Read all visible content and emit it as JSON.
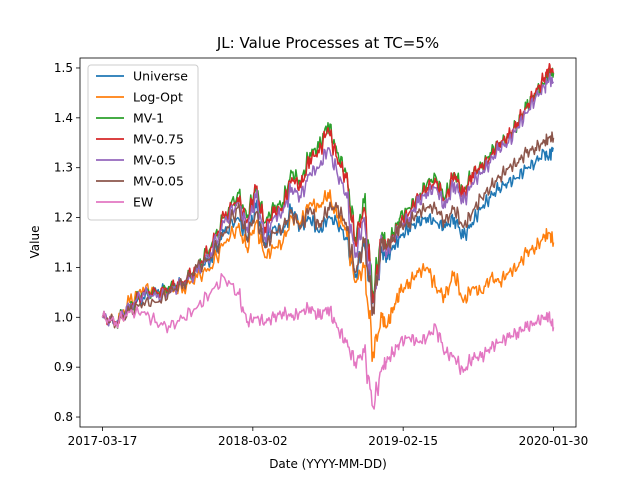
{
  "chart_data": {
    "type": "line",
    "title": "JL: Value Processes at TC=5%",
    "xlabel": "Date (YYYY-MM-DD)",
    "ylabel": "Value",
    "ylim": [
      0.78,
      1.52
    ],
    "yticks": [
      0.8,
      0.9,
      1.0,
      1.1,
      1.2,
      1.3,
      1.4,
      1.5
    ],
    "ytick_labels": [
      "0.8",
      "0.9",
      "1.0",
      "1.1",
      "1.2",
      "1.3",
      "1.4",
      "1.5"
    ],
    "xlim": [
      -0.05,
      1.05
    ],
    "xticks": [
      0.0,
      0.3333,
      0.6667,
      1.0
    ],
    "xtick_labels": [
      "2017-03-17",
      "2018-03-02",
      "2019-02-15",
      "2020-01-30"
    ],
    "x": [
      0.0,
      0.03,
      0.06,
      0.09,
      0.12,
      0.15,
      0.18,
      0.21,
      0.24,
      0.27,
      0.3,
      0.32,
      0.34,
      0.36,
      0.38,
      0.4,
      0.42,
      0.44,
      0.46,
      0.48,
      0.5,
      0.52,
      0.54,
      0.56,
      0.58,
      0.6,
      0.62,
      0.63,
      0.645,
      0.66,
      0.68,
      0.7,
      0.72,
      0.74,
      0.76,
      0.78,
      0.8,
      0.82,
      0.84,
      0.86,
      0.88,
      0.9,
      0.92,
      0.94,
      0.96,
      0.98,
      0.99,
      1.0
    ],
    "legend_position": "upper-left",
    "series": [
      {
        "name": "Universe",
        "color": "#1f77b4",
        "values": [
          1.0,
          0.99,
          1.02,
          1.04,
          1.05,
          1.06,
          1.07,
          1.09,
          1.12,
          1.17,
          1.2,
          1.16,
          1.22,
          1.15,
          1.18,
          1.17,
          1.22,
          1.18,
          1.2,
          1.17,
          1.2,
          1.19,
          1.16,
          1.08,
          1.15,
          1.03,
          1.13,
          1.12,
          1.14,
          1.16,
          1.18,
          1.19,
          1.2,
          1.19,
          1.18,
          1.2,
          1.16,
          1.19,
          1.22,
          1.24,
          1.26,
          1.27,
          1.28,
          1.3,
          1.31,
          1.33,
          1.32,
          1.34
        ]
      },
      {
        "name": "Log-Opt",
        "color": "#ff7f0e",
        "values": [
          1.0,
          0.99,
          1.03,
          1.06,
          1.05,
          1.05,
          1.06,
          1.08,
          1.1,
          1.15,
          1.18,
          1.14,
          1.19,
          1.12,
          1.14,
          1.15,
          1.2,
          1.19,
          1.23,
          1.22,
          1.25,
          1.2,
          1.18,
          1.07,
          1.1,
          0.93,
          1.0,
          0.98,
          1.02,
          1.05,
          1.07,
          1.09,
          1.1,
          1.06,
          1.04,
          1.09,
          1.03,
          1.06,
          1.05,
          1.08,
          1.07,
          1.09,
          1.1,
          1.13,
          1.14,
          1.16,
          1.17,
          1.15
        ]
      },
      {
        "name": "MV-1",
        "color": "#2ca02c",
        "values": [
          1.0,
          0.99,
          1.02,
          1.05,
          1.05,
          1.06,
          1.07,
          1.1,
          1.14,
          1.2,
          1.25,
          1.2,
          1.26,
          1.19,
          1.22,
          1.23,
          1.29,
          1.27,
          1.33,
          1.34,
          1.39,
          1.33,
          1.29,
          1.16,
          1.23,
          1.05,
          1.17,
          1.14,
          1.17,
          1.2,
          1.22,
          1.24,
          1.27,
          1.28,
          1.24,
          1.29,
          1.25,
          1.29,
          1.3,
          1.33,
          1.35,
          1.36,
          1.39,
          1.42,
          1.45,
          1.47,
          1.49,
          1.49
        ]
      },
      {
        "name": "MV-0.75",
        "color": "#d62728",
        "values": [
          1.0,
          0.99,
          1.02,
          1.05,
          1.05,
          1.06,
          1.07,
          1.1,
          1.14,
          1.2,
          1.24,
          1.19,
          1.26,
          1.18,
          1.21,
          1.22,
          1.28,
          1.26,
          1.32,
          1.33,
          1.38,
          1.32,
          1.28,
          1.15,
          1.22,
          1.03,
          1.16,
          1.14,
          1.16,
          1.19,
          1.21,
          1.24,
          1.26,
          1.27,
          1.23,
          1.29,
          1.24,
          1.29,
          1.3,
          1.32,
          1.35,
          1.36,
          1.39,
          1.42,
          1.45,
          1.48,
          1.5,
          1.49
        ]
      },
      {
        "name": "MV-0.5",
        "color": "#9467bd",
        "values": [
          1.0,
          0.99,
          1.02,
          1.05,
          1.04,
          1.05,
          1.07,
          1.09,
          1.13,
          1.19,
          1.23,
          1.18,
          1.24,
          1.16,
          1.2,
          1.21,
          1.26,
          1.24,
          1.29,
          1.3,
          1.34,
          1.29,
          1.25,
          1.12,
          1.2,
          1.01,
          1.15,
          1.13,
          1.16,
          1.18,
          1.2,
          1.23,
          1.25,
          1.26,
          1.22,
          1.27,
          1.23,
          1.27,
          1.29,
          1.31,
          1.34,
          1.35,
          1.38,
          1.41,
          1.44,
          1.46,
          1.48,
          1.47
        ]
      },
      {
        "name": "MV-0.05",
        "color": "#8c564b",
        "values": [
          1.0,
          0.99,
          1.01,
          1.03,
          1.03,
          1.05,
          1.07,
          1.1,
          1.12,
          1.17,
          1.22,
          1.16,
          1.21,
          1.14,
          1.17,
          1.18,
          1.21,
          1.18,
          1.22,
          1.18,
          1.22,
          1.22,
          1.19,
          1.09,
          1.15,
          1.02,
          1.15,
          1.14,
          1.16,
          1.18,
          1.19,
          1.21,
          1.22,
          1.22,
          1.19,
          1.22,
          1.18,
          1.21,
          1.24,
          1.26,
          1.28,
          1.3,
          1.31,
          1.33,
          1.34,
          1.35,
          1.36,
          1.36
        ]
      },
      {
        "name": "EW",
        "color": "#e377c2",
        "values": [
          1.0,
          0.99,
          1.01,
          1.01,
          0.99,
          0.98,
          1.0,
          1.02,
          1.05,
          1.08,
          1.05,
          0.99,
          1.0,
          0.99,
          1.0,
          1.01,
          1.0,
          1.01,
          1.02,
          1.0,
          1.02,
          0.98,
          0.95,
          0.91,
          0.93,
          0.82,
          0.9,
          0.91,
          0.93,
          0.95,
          0.96,
          0.95,
          0.96,
          0.98,
          0.93,
          0.92,
          0.89,
          0.92,
          0.92,
          0.94,
          0.95,
          0.96,
          0.97,
          0.98,
          0.99,
          1.0,
          1.0,
          0.98
        ]
      }
    ]
  }
}
